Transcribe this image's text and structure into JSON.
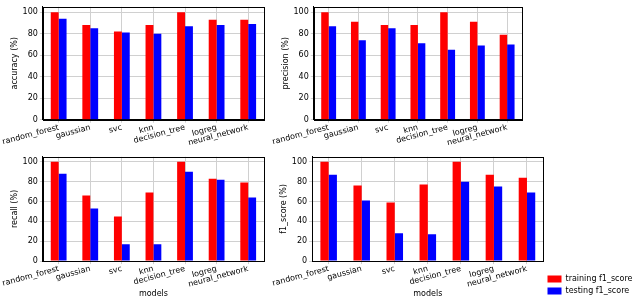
{
  "chart_data": [
    {
      "type": "bar",
      "categories": [
        "random_forest",
        "gaussian",
        "svc",
        "knn",
        "decision_tree",
        "logreg",
        "neural_network"
      ],
      "ylabel": "accuracy (%)",
      "series": [
        {
          "color": "#ff0000",
          "values": [
            100,
            88,
            82,
            88,
            100,
            93,
            93
          ]
        },
        {
          "color": "#0000ff",
          "values": [
            94,
            85,
            81,
            80,
            87,
            88,
            89
          ]
        }
      ],
      "ylim": [
        0,
        105
      ],
      "yticks": [
        0,
        20,
        40,
        60,
        80,
        100
      ],
      "grid": true
    },
    {
      "type": "bar",
      "categories": [
        "random_forest",
        "gaussian",
        "svc",
        "knn",
        "decision_tree",
        "logreg",
        "neural_network"
      ],
      "ylabel": "precision (%)",
      "series": [
        {
          "color": "#ff0000",
          "values": [
            100,
            91,
            88,
            88,
            100,
            91,
            79
          ]
        },
        {
          "color": "#0000ff",
          "values": [
            87,
            74,
            85,
            71,
            65,
            69,
            70
          ]
        }
      ],
      "ylim": [
        0,
        105
      ],
      "yticks": [
        0,
        20,
        40,
        60,
        80,
        100
      ],
      "grid": true
    },
    {
      "type": "bar",
      "categories": [
        "random_forest",
        "gaussian",
        "svc",
        "knn",
        "decision_tree",
        "logreg",
        "neural_network"
      ],
      "xlabel": "models",
      "ylabel": "recall (%)",
      "series": [
        {
          "color": "#ff0000",
          "values": [
            100,
            66,
            45,
            69,
            100,
            83,
            79
          ]
        },
        {
          "color": "#0000ff",
          "values": [
            88,
            53,
            17,
            17,
            90,
            82,
            64
          ]
        }
      ],
      "ylim": [
        0,
        105
      ],
      "yticks": [
        0,
        20,
        40,
        60,
        80,
        100
      ],
      "grid": true
    },
    {
      "type": "bar",
      "categories": [
        "random_forest",
        "gaussian",
        "svc",
        "knn",
        "decision_tree",
        "logreg",
        "neural_network"
      ],
      "xlabel": "models",
      "ylabel": "f1_score (%)",
      "series": [
        {
          "name": "training f1_score",
          "color": "#ff0000",
          "values": [
            100,
            76,
            59,
            77,
            100,
            87,
            84
          ]
        },
        {
          "name": "testing f1_score",
          "color": "#0000ff",
          "values": [
            87,
            61,
            28,
            27,
            80,
            75,
            69
          ]
        }
      ],
      "ylim": [
        0,
        105
      ],
      "yticks": [
        0,
        20,
        40,
        60,
        80,
        100
      ],
      "grid": true,
      "legend": "right"
    }
  ]
}
